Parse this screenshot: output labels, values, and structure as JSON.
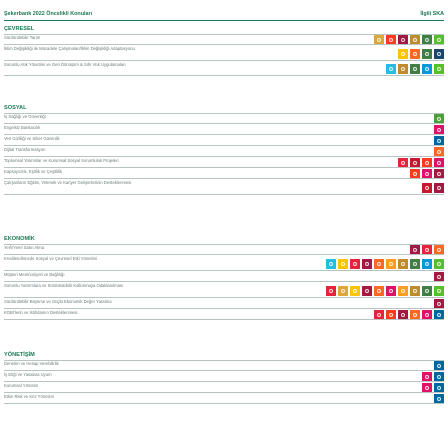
{
  "header": {
    "left": "Şekerbank 2022 Öncelikli Konuları",
    "right": "İlgili SKA"
  },
  "sdg_colors": {
    "1": "#e5243b",
    "2": "#dda63a",
    "3": "#4c9f38",
    "4": "#c5192d",
    "5": "#ff3a21",
    "6": "#26bde2",
    "7": "#fcc30b",
    "8": "#a21942",
    "9": "#fd6925",
    "10": "#dd1367",
    "11": "#fd9d24",
    "12": "#bf8b2e",
    "13": "#3f7e44",
    "14": "#0a97d9",
    "15": "#56c02b",
    "16": "#00689d",
    "17": "#19486a"
  },
  "sections": [
    {
      "title": "ÇEVRESEL",
      "rows": [
        {
          "label": "Sürdürülebilir Tarım",
          "sdgs": [
            2,
            5,
            8,
            12,
            13,
            15
          ],
          "icon": "sdg-goal-icon"
        },
        {
          "label": "İklim Değişikliği ile Mücadele Çalışmaları/İklim Değişikliği Adaptasyonu",
          "sdgs": [
            7,
            9,
            13,
            17
          ],
          "icon": "sdg-goal-icon"
        },
        {
          "label": "Sorumlu Atık Yönetimi ve Geri Dönüşüm & Sıfır Atık Uygulamaları",
          "sdgs": [
            6,
            12,
            13,
            14,
            15
          ],
          "icon": "sdg-goal-icon"
        }
      ]
    },
    {
      "title": "SOSYAL",
      "rows": [
        {
          "label": "İş Sağlığı ve Güvenliği",
          "sdgs": [
            3
          ],
          "icon": "sdg-goal-icon"
        },
        {
          "label": "Engelsiz Bankacılık",
          "sdgs": [
            10
          ],
          "icon": "sdg-goal-icon"
        },
        {
          "label": "Veri Gizliliği ve Siber Güvenlik",
          "sdgs": [
            16
          ],
          "icon": "sdg-goal-icon"
        },
        {
          "label": "Dijital Transformasyon",
          "sdgs": [
            9
          ],
          "icon": "sdg-goal-icon"
        },
        {
          "label": "Toplumsal Yatırımlar ve Kurumsal Sosyal Sorumluluk Projeleri",
          "sdgs": [
            1,
            4,
            5,
            10
          ],
          "icon": "sdg-goal-icon"
        },
        {
          "label": "Kapsayıcılık, Eşitlik ve Çeşitlilik",
          "sdgs": [
            5,
            10,
            8
          ],
          "icon": "sdg-goal-icon"
        },
        {
          "label": "Çalışanların Eğitim, Yetenek ve Kariyer Gelişimlerinin Desteklenmesi",
          "sdgs": [
            4,
            8
          ],
          "icon": "sdg-goal-icon"
        }
      ]
    },
    {
      "title": "EKONOMİK",
      "rows": [
        {
          "label": "Yerli/Yerel Satın Alma",
          "sdgs": [
            8,
            1,
            9
          ],
          "icon": "sdg-goal-icon"
        },
        {
          "label": "Kredilendirmede Sosyal ve Çevresel Etki Yönetimi",
          "sdgs": [
            6,
            7,
            1,
            8,
            9,
            11,
            12,
            13,
            14,
            15
          ],
          "icon": "sdg-goal-icon"
        },
        {
          "label": "Müşteri Memnuniyeti ve Bağlılığı",
          "sdgs": [
            8
          ],
          "icon": "sdg-goal-icon"
        },
        {
          "label": "Sorumlu Yatırımlara ve Sürdürülebilir Kalkınmaya Odaklanılması",
          "sdgs": [
            1,
            2,
            7,
            8,
            9,
            10,
            11,
            12,
            13,
            15
          ],
          "icon": "sdg-goal-icon"
        },
        {
          "label": "Sürdürülebilir Büyüme ve Güçlü Ekonomik Değer Yaratma",
          "sdgs": [
            8
          ],
          "icon": "sdg-goal-icon"
        },
        {
          "label": "KOBİ'lerin ve İstihdamın Desteklenmesi",
          "sdgs": [
            1,
            5,
            8,
            9,
            10,
            16
          ],
          "icon": "sdg-goal-icon"
        }
      ]
    },
    {
      "title": "YÖNETİŞİM",
      "rows": [
        {
          "label": "Denetim ve Hesap Verebilirlik",
          "sdgs": [
            16
          ],
          "icon": "sdg-goal-icon"
        },
        {
          "label": "İş Etiği ve Yasalara Uyum",
          "sdgs": [
            10,
            16
          ],
          "icon": "sdg-goal-icon"
        },
        {
          "label": "Kurumsal Yönetim",
          "sdgs": [
            10,
            16
          ],
          "icon": "sdg-goal-icon"
        },
        {
          "label": "Etkin Risk ve Kriz Yönetimi",
          "sdgs": [
            16
          ],
          "icon": "sdg-goal-icon"
        }
      ]
    }
  ]
}
